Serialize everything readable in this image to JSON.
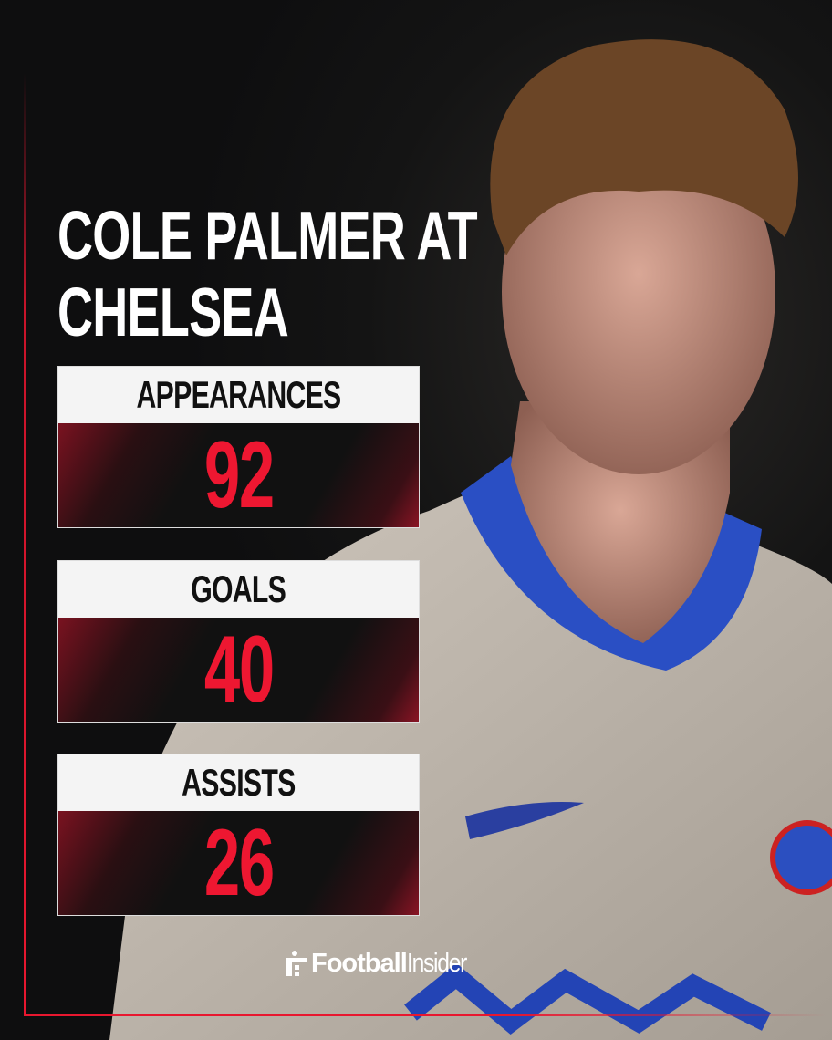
{
  "title": {
    "line1": "COLE PALMER AT",
    "line2": "CHELSEA"
  },
  "stats": [
    {
      "label": "APPEARANCES",
      "value": "92"
    },
    {
      "label": "GOALS",
      "value": "40"
    },
    {
      "label": "ASSISTS",
      "value": "26"
    }
  ],
  "brand": {
    "bold": "Football",
    "normal": "Insider"
  },
  "colors": {
    "accent": "#ee1731",
    "background": "#0f0f10",
    "header": "#f4f4f4"
  }
}
